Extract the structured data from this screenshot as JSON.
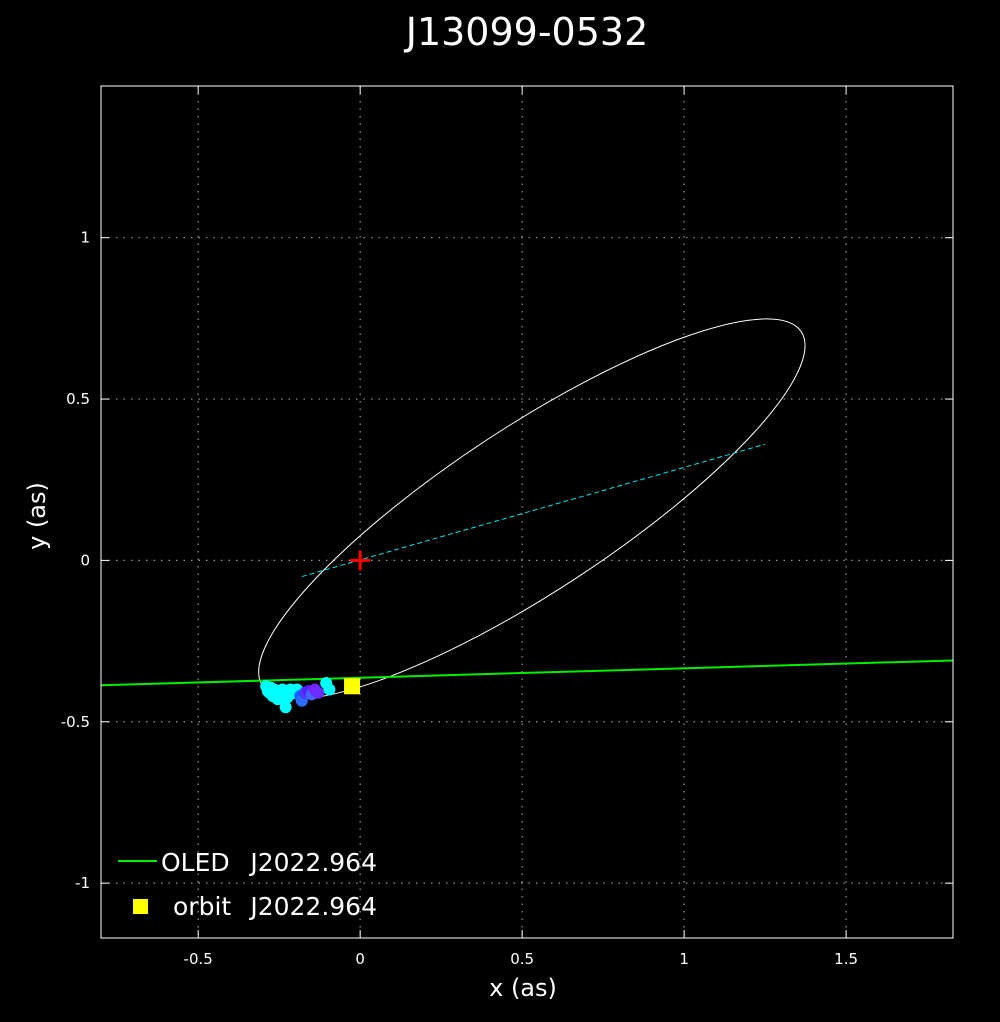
{
  "chart_data": {
    "type": "scatter",
    "title": "J13099-0532",
    "xlabel": "x (as)",
    "ylabel": "y (as)",
    "xlim": [
      -0.8,
      1.83
    ],
    "ylim": [
      -1.17,
      1.47
    ],
    "grid": true,
    "grid_style": "dotted",
    "x_ticks": [
      {
        "value": -0.5,
        "label": "-0.5"
      },
      {
        "value": 0,
        "label": "0"
      },
      {
        "value": 0.5,
        "label": "0.5"
      },
      {
        "value": 1,
        "label": "1"
      },
      {
        "value": 1.5,
        "label": "1.5"
      }
    ],
    "y_ticks": [
      {
        "value": 1,
        "label": "1"
      },
      {
        "value": 0.5,
        "label": "0.5"
      },
      {
        "value": 0,
        "label": "0"
      },
      {
        "value": -0.5,
        "label": "-0.5"
      },
      {
        "value": -1,
        "label": "-1"
      }
    ],
    "orbit_ellipse": {
      "center": [
        0.53,
        0.16
      ],
      "semi_major": 0.995,
      "semi_minor": 0.255,
      "angle_deg": 33.3,
      "color": "#ffffff"
    },
    "line_of_nodes": {
      "from": [
        -0.18,
        -0.05
      ],
      "to": [
        1.25,
        0.36
      ],
      "color": "#00e5e5"
    },
    "primary_star": {
      "x": 0,
      "y": 0,
      "marker": "plus",
      "color": "#ff0000"
    },
    "oled_line": {
      "label": "OLED",
      "epoch": "J2022.964",
      "color": "#00ee00",
      "points": [
        [
          -0.8,
          -0.387
        ],
        [
          1.83,
          -0.31
        ]
      ]
    },
    "orbit_position": {
      "label": "orbit",
      "epoch": "J2022.964",
      "x": -0.025,
      "y": -0.39,
      "marker": "square",
      "color": "#ffff00"
    },
    "observations": [
      {
        "x": -0.29,
        "y": -0.39,
        "color": "#00ffff"
      },
      {
        "x": -0.285,
        "y": -0.405,
        "color": "#00ffff"
      },
      {
        "x": -0.28,
        "y": -0.41,
        "color": "#00ffff"
      },
      {
        "x": -0.275,
        "y": -0.395,
        "color": "#00ffff"
      },
      {
        "x": -0.27,
        "y": -0.42,
        "color": "#00ffff"
      },
      {
        "x": -0.265,
        "y": -0.4,
        "color": "#00ffff"
      },
      {
        "x": -0.26,
        "y": -0.41,
        "color": "#00ffff"
      },
      {
        "x": -0.255,
        "y": -0.43,
        "color": "#00ffff"
      },
      {
        "x": -0.25,
        "y": -0.405,
        "color": "#00ffff"
      },
      {
        "x": -0.245,
        "y": -0.42,
        "color": "#00ffff"
      },
      {
        "x": -0.24,
        "y": -0.4,
        "color": "#00ffff"
      },
      {
        "x": -0.235,
        "y": -0.415,
        "color": "#00ffff"
      },
      {
        "x": -0.23,
        "y": -0.455,
        "color": "#00ffff"
      },
      {
        "x": -0.225,
        "y": -0.425,
        "color": "#00ffff"
      },
      {
        "x": -0.215,
        "y": -0.4,
        "color": "#00ffff"
      },
      {
        "x": -0.205,
        "y": -0.41,
        "color": "#00ffff"
      },
      {
        "x": -0.195,
        "y": -0.4,
        "color": "#00ffff"
      },
      {
        "x": -0.185,
        "y": -0.42,
        "color": "#0066ff"
      },
      {
        "x": -0.18,
        "y": -0.435,
        "color": "#2b6bff"
      },
      {
        "x": -0.17,
        "y": -0.41,
        "color": "#5533ff"
      },
      {
        "x": -0.16,
        "y": -0.405,
        "color": "#5522ff"
      },
      {
        "x": -0.15,
        "y": -0.415,
        "color": "#4466ff"
      },
      {
        "x": -0.14,
        "y": -0.4,
        "color": "#7722ff"
      },
      {
        "x": -0.13,
        "y": -0.41,
        "color": "#6a2cff"
      },
      {
        "x": -0.105,
        "y": -0.38,
        "color": "#00ffff"
      },
      {
        "x": -0.095,
        "y": -0.4,
        "color": "#00ffff"
      }
    ],
    "legend": {
      "placement": "bottom-left",
      "entries": [
        {
          "name": "OLED",
          "epoch": "J2022.964",
          "marker": "line",
          "color": "#00ee00"
        },
        {
          "name": "orbit",
          "epoch": "J2022.964",
          "marker": "square",
          "color": "#ffff00"
        }
      ]
    }
  }
}
